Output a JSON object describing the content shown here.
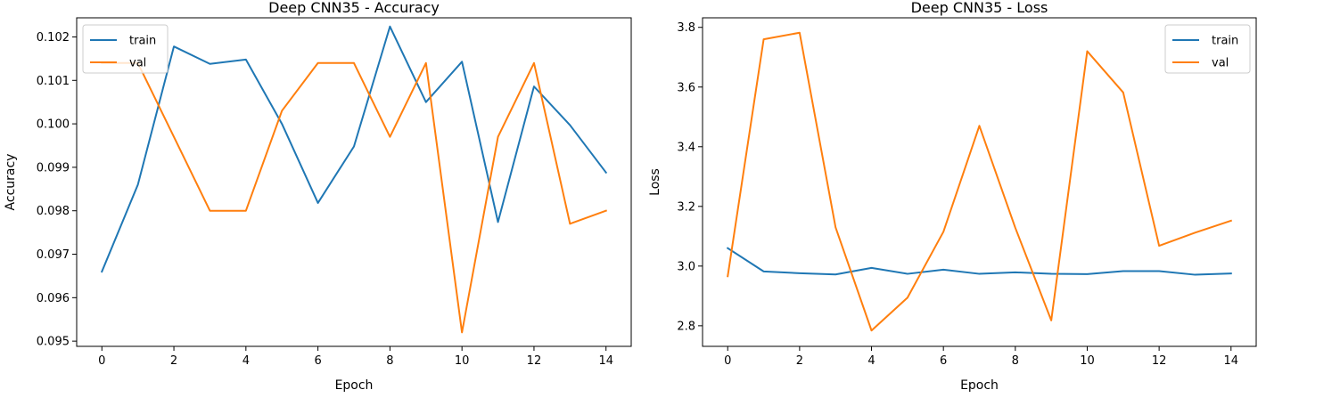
{
  "chart_data": [
    {
      "type": "line",
      "title": "Deep CNN35 - Accuracy",
      "xlabel": "Epoch",
      "ylabel": "Accuracy",
      "xlim": [
        -0.7,
        14.7
      ],
      "ylim": [
        0.09488,
        0.10244
      ],
      "xticks": [
        0,
        2,
        4,
        6,
        8,
        10,
        12,
        14
      ],
      "xtick_labels": [
        "0",
        "2",
        "4",
        "6",
        "8",
        "10",
        "12",
        "14"
      ],
      "yticks": [
        0.095,
        0.096,
        0.097,
        0.098,
        0.099,
        0.1,
        0.101,
        0.102
      ],
      "ytick_labels": [
        "0.095",
        "0.096",
        "0.097",
        "0.098",
        "0.099",
        "0.100",
        "0.101",
        "0.102"
      ],
      "grid": false,
      "legend": "top-left",
      "x": [
        0,
        1,
        2,
        3,
        4,
        5,
        6,
        7,
        8,
        9,
        10,
        11,
        12,
        13,
        14
      ],
      "series": [
        {
          "name": "train",
          "color": "#1f77b4",
          "values": [
            0.0966,
            0.0986,
            0.10178,
            0.10138,
            0.10148,
            0.1,
            0.09818,
            0.09948,
            0.10224,
            0.1005,
            0.10143,
            0.09774,
            0.10086,
            0.09997,
            0.09888
          ]
        },
        {
          "name": "val",
          "color": "#ff7f0e",
          "values": [
            0.1014,
            0.1014,
            0.0997,
            0.098,
            0.098,
            0.1003,
            0.1014,
            0.1014,
            0.0997,
            0.1014,
            0.0952,
            0.0997,
            0.1014,
            0.0977,
            0.098
          ]
        }
      ]
    },
    {
      "type": "line",
      "title": "Deep CNN35 - Loss",
      "xlabel": "Epoch",
      "ylabel": "Loss",
      "xlim": [
        -0.7,
        14.7
      ],
      "ylim": [
        2.731,
        3.832
      ],
      "xticks": [
        0,
        2,
        4,
        6,
        8,
        10,
        12,
        14
      ],
      "xtick_labels": [
        "0",
        "2",
        "4",
        "6",
        "8",
        "10",
        "12",
        "14"
      ],
      "yticks": [
        2.8,
        3.0,
        3.2,
        3.4,
        3.6,
        3.8
      ],
      "ytick_labels": [
        "2.8",
        "3.0",
        "3.2",
        "3.4",
        "3.6",
        "3.8"
      ],
      "grid": false,
      "legend": "top-right",
      "x": [
        0,
        1,
        2,
        3,
        4,
        5,
        6,
        7,
        8,
        9,
        10,
        11,
        12,
        13,
        14
      ],
      "series": [
        {
          "name": "train",
          "color": "#1f77b4",
          "values": [
            3.06,
            2.982,
            2.976,
            2.972,
            2.994,
            2.974,
            2.988,
            2.974,
            2.979,
            2.974,
            2.973,
            2.983,
            2.983,
            2.971,
            2.975
          ]
        },
        {
          "name": "val",
          "color": "#ff7f0e",
          "values": [
            2.966,
            3.76,
            3.782,
            3.13,
            2.784,
            2.894,
            3.115,
            3.47,
            3.128,
            2.818,
            3.72,
            3.582,
            3.068,
            3.112,
            3.152
          ]
        }
      ]
    }
  ]
}
